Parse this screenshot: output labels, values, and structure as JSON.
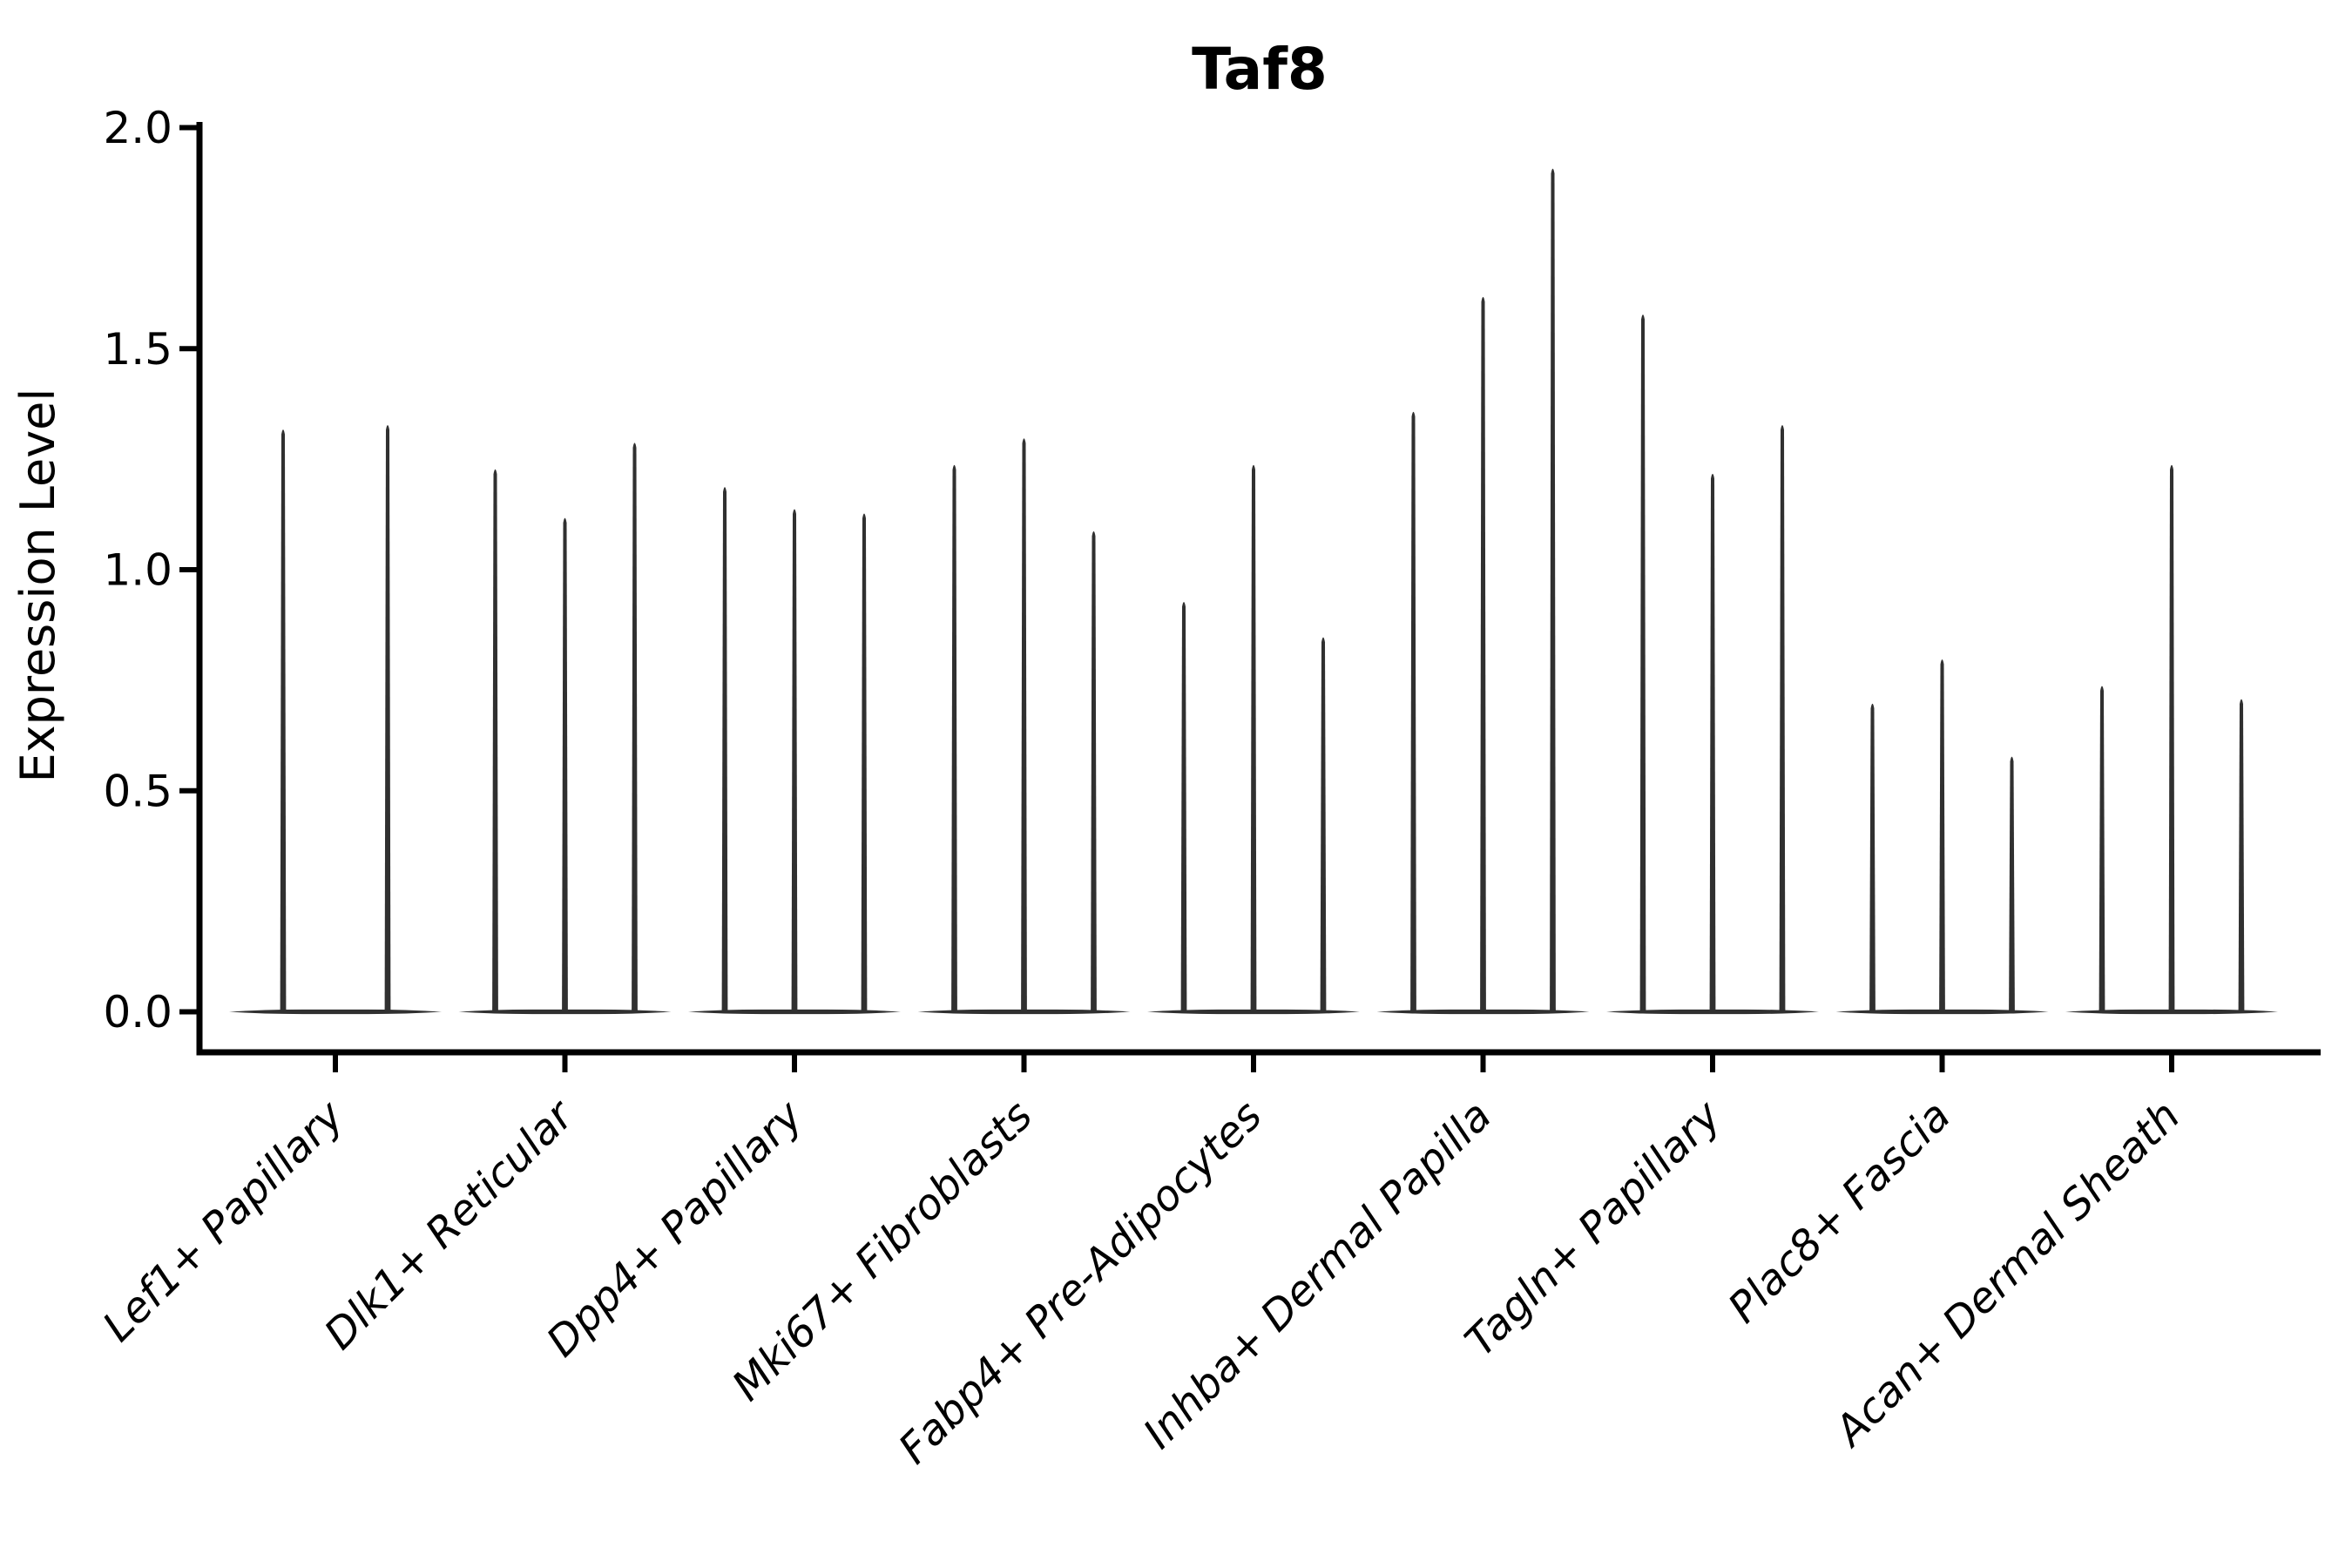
{
  "title": "Taf8",
  "y_axis_label": "Expression Level",
  "colors": {
    "background": "#ffffff",
    "axis": "#000000",
    "violin": "#303030",
    "text": "#000000"
  },
  "chart_data": {
    "type": "violin",
    "title": "Taf8",
    "xlabel": "",
    "ylabel": "Expression Level",
    "ylim": [
      0,
      2.05
    ],
    "y_ticks": [
      0.0,
      0.5,
      1.0,
      1.5,
      2.0
    ],
    "y_tick_labels": [
      "0.0",
      "0.5",
      "1.0",
      "1.5",
      "2.0"
    ],
    "grid": false,
    "legend_position": "none",
    "x_tick_rotation_deg": 45,
    "x_tick_style": "italic",
    "categories": [
      "Lef1+ Papillary",
      "Dlk1+ Reticular",
      "Dpp4+ Papillary",
      "Mki67+ Fibroblasts",
      "Fabp4+ Pre-Adipocytes",
      "Inhba+ Dermal Papilla",
      "Tagln+ Papillary",
      "Plac8+ Fascia",
      "Acan+ Dermal Sheath"
    ],
    "base_value": 0.0,
    "violins": [
      {
        "category": "Lef1+ Papillary",
        "tips": [
          1.32,
          1.33
        ]
      },
      {
        "category": "Dlk1+ Reticular",
        "tips": [
          1.23,
          1.12,
          1.29
        ]
      },
      {
        "category": "Dpp4+ Papillary",
        "tips": [
          1.19,
          1.14,
          1.13
        ]
      },
      {
        "category": "Mki67+ Fibroblasts",
        "tips": [
          1.24,
          1.3,
          1.09
        ]
      },
      {
        "category": "Fabp4+ Pre-Adipocytes",
        "tips": [
          0.93,
          1.24,
          0.85
        ]
      },
      {
        "category": "Inhba+ Dermal Papilla",
        "tips": [
          1.36,
          1.62,
          1.91
        ]
      },
      {
        "category": "Tagln+ Papillary",
        "tips": [
          1.58,
          1.22,
          1.33
        ]
      },
      {
        "category": "Plac8+ Fascia",
        "tips": [
          0.7,
          0.8,
          0.58
        ]
      },
      {
        "category": "Acan+ Dermal Sheath",
        "tips": [
          0.74,
          1.24,
          0.71
        ]
      }
    ]
  }
}
